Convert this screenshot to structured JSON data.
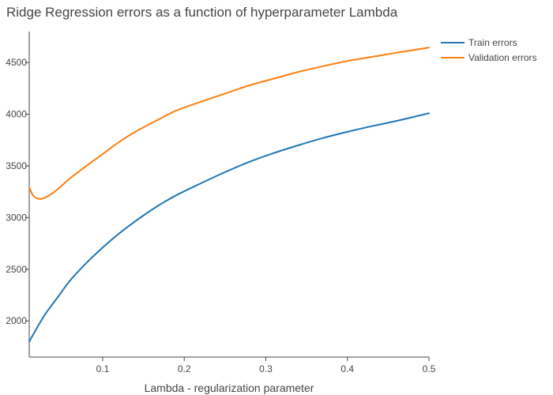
{
  "chart_data": {
    "type": "line",
    "title": "Ridge Regression errors as a function of hyperparameter Lambda",
    "xlabel": "Lambda - regularization parameter",
    "ylabel": "",
    "xlim": [
      0.01,
      0.5
    ],
    "ylim": [
      1650,
      4800
    ],
    "x_ticks": [
      0.1,
      0.2,
      0.3,
      0.4,
      0.5
    ],
    "x_tick_labels": [
      "0.1",
      "0.2",
      "0.3",
      "0.4",
      "0.5"
    ],
    "y_ticks": [
      2000,
      2500,
      3000,
      3500,
      4000,
      4500
    ],
    "y_tick_labels": [
      "2000",
      "2500",
      "3000",
      "3500",
      "4000",
      "4500"
    ],
    "grid": false,
    "legend_position": "top-right",
    "series": [
      {
        "name": "Train errors",
        "color": "#1f77b4",
        "x": [
          0.01,
          0.02,
          0.03,
          0.045,
          0.06,
          0.08,
          0.1,
          0.12,
          0.14,
          0.165,
          0.19,
          0.22,
          0.25,
          0.28,
          0.31,
          0.34,
          0.37,
          0.4,
          0.43,
          0.46,
          0.5
        ],
        "y": [
          1800,
          1940,
          2070,
          2230,
          2390,
          2560,
          2710,
          2845,
          2965,
          3100,
          3215,
          3330,
          3440,
          3540,
          3625,
          3700,
          3770,
          3830,
          3885,
          3935,
          4010
        ]
      },
      {
        "name": "Validation errors",
        "color": "#ff7f0e",
        "x": [
          0.01,
          0.015,
          0.02,
          0.025,
          0.03,
          0.04,
          0.05,
          0.06,
          0.08,
          0.1,
          0.12,
          0.14,
          0.165,
          0.19,
          0.22,
          0.25,
          0.28,
          0.31,
          0.34,
          0.37,
          0.4,
          0.43,
          0.46,
          0.5
        ],
        "y": [
          3290,
          3210,
          3185,
          3182,
          3195,
          3245,
          3310,
          3380,
          3500,
          3615,
          3730,
          3830,
          3935,
          4035,
          4120,
          4200,
          4280,
          4345,
          4410,
          4465,
          4515,
          4555,
          4595,
          4645
        ]
      }
    ]
  }
}
